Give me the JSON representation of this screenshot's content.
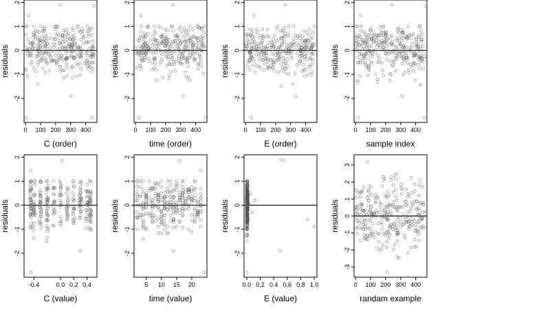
{
  "chart_data": [
    {
      "type": "scatter",
      "xlabel": "C (order)",
      "ylabel": "residuals",
      "xlim": [
        -10,
        475
      ],
      "ylim": [
        -3,
        2.1
      ],
      "xticks": [
        0,
        100,
        200,
        300,
        400
      ],
      "xtick_labels": [
        "0",
        "100",
        "200",
        "300",
        "400"
      ],
      "yticks": [
        -2,
        -1,
        0,
        1,
        2
      ],
      "ytick_labels": [
        "-2",
        "-1",
        "0",
        "1",
        "2"
      ],
      "reference_line": 0,
      "grid": false,
      "legend": "none"
    },
    {
      "type": "scatter",
      "xlabel": "time (order)",
      "ylabel": "residuals",
      "xlim": [
        -10,
        475
      ],
      "ylim": [
        -3,
        2.1
      ],
      "xticks": [
        0,
        100,
        200,
        300,
        400
      ],
      "xtick_labels": [
        "0",
        "100",
        "200",
        "300",
        "400"
      ],
      "yticks": [
        -2,
        -1,
        0,
        1,
        2
      ],
      "ytick_labels": [
        "-2",
        "-1",
        "0",
        "1",
        "2"
      ],
      "reference_line": 0,
      "grid": false,
      "legend": "none"
    },
    {
      "type": "scatter",
      "xlabel": "E (order)",
      "ylabel": "residuals",
      "xlim": [
        -10,
        475
      ],
      "ylim": [
        -3,
        2.1
      ],
      "xticks": [
        0,
        100,
        200,
        300,
        400
      ],
      "xtick_labels": [
        "0",
        "100",
        "200",
        "300",
        "400"
      ],
      "yticks": [
        -2,
        -1,
        0,
        1,
        2
      ],
      "ytick_labels": [
        "-2",
        "-1",
        "0",
        "1",
        "2"
      ],
      "reference_line": 0,
      "grid": false,
      "legend": "none"
    },
    {
      "type": "scatter",
      "xlabel": "sample index",
      "ylabel": "residuals",
      "xlim": [
        -10,
        475
      ],
      "ylim": [
        -3,
        2.1
      ],
      "xticks": [
        0,
        100,
        200,
        300,
        400
      ],
      "xtick_labels": [
        "0",
        "100",
        "200",
        "300",
        "400"
      ],
      "yticks": [
        -2,
        -1,
        0,
        1,
        2
      ],
      "ytick_labels": [
        "-2",
        "-1",
        "0",
        "1",
        "2"
      ],
      "reference_line": 0,
      "grid": false,
      "legend": "none"
    },
    {
      "type": "scatter",
      "xlabel": "C (value)",
      "ylabel": "residuals",
      "xlim": [
        -0.55,
        0.55
      ],
      "ylim": [
        -3,
        2.1
      ],
      "xticks": [
        -0.4,
        0.0,
        0.2,
        0.4
      ],
      "xtick_labels": [
        "-0.4",
        "0.0",
        "0.2",
        "0.4"
      ],
      "yticks": [
        -2,
        -1,
        0,
        1,
        2
      ],
      "ytick_labels": [
        "-2",
        "-1",
        "0",
        "1",
        "2"
      ],
      "reference_line": 0,
      "grid": false,
      "legend": "none"
    },
    {
      "type": "scatter",
      "xlabel": "time (value)",
      "ylabel": "residuals",
      "xlim": [
        1,
        25
      ],
      "ylim": [
        -3,
        2.1
      ],
      "xticks": [
        5,
        10,
        15,
        20
      ],
      "xtick_labels": [
        "5",
        "10",
        "15",
        "20"
      ],
      "yticks": [
        -2,
        -1,
        0,
        1,
        2
      ],
      "ytick_labels": [
        "-2",
        "-1",
        "0",
        "1",
        "2"
      ],
      "reference_line": 0,
      "grid": false,
      "legend": "none"
    },
    {
      "type": "scatter",
      "xlabel": "E (value)",
      "ylabel": "residuals",
      "xlim": [
        -0.04,
        1.04
      ],
      "ylim": [
        -3,
        2.1
      ],
      "xticks": [
        0.0,
        0.2,
        0.4,
        0.6,
        0.8,
        1.0
      ],
      "xtick_labels": [
        "0.0",
        "0.2",
        "0.4",
        "0.6",
        "0.8",
        "1.0"
      ],
      "yticks": [
        -2,
        -1,
        0,
        1,
        2
      ],
      "ytick_labels": [
        "-2",
        "-1",
        "0",
        "1",
        "2"
      ],
      "reference_line": 0,
      "grid": false,
      "legend": "none"
    },
    {
      "type": "scatter",
      "xlabel": "randam example",
      "ylabel": "residuals",
      "xlim": [
        -10,
        475
      ],
      "ylim": [
        -3.6,
        3.6
      ],
      "xticks": [
        0,
        100,
        200,
        300,
        400
      ],
      "xtick_labels": [
        "0",
        "100",
        "200",
        "300",
        "400"
      ],
      "yticks": [
        -3,
        -2,
        -1,
        0,
        1,
        2,
        3
      ],
      "ytick_labels": [
        "-3",
        "-2",
        "-1",
        "0",
        "1",
        "2",
        "3"
      ],
      "reference_line": 0,
      "grid": false,
      "legend": "none"
    }
  ]
}
